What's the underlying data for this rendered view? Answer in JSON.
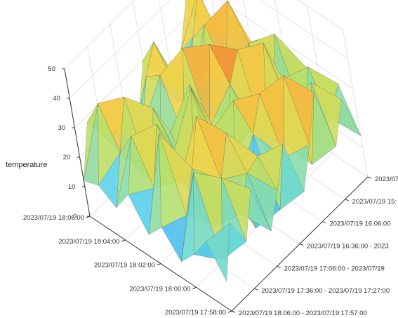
{
  "chart_data": {
    "type": "surface3d",
    "zlabel": "temperature",
    "zlim": [
      0,
      50
    ],
    "z_ticks": [
      "0",
      "10",
      "20",
      "30",
      "40",
      "50"
    ],
    "y_ticks": [
      "2023/07/19 18:06:00",
      "2023/07/19 18:04:00",
      "2023/07/19 18:02:00",
      "2023/07/19 18:00:00",
      "2023/07/19 17:58:00"
    ],
    "x_ticks": [
      "2023/07/19 18:06:00 - 2023/07/19 17:57:00",
      "2023/07/19 17:36:00 - 2023/07/19 17:27:00",
      "2023/07/19 17:06:00 - 2023/07/19",
      "2023/07/19 16:36:00 - 2023",
      "2023/07/19 16:06:00",
      "2023/07/19 15:",
      "2023/07/1"
    ],
    "grid": true,
    "colormap": [
      "#7b3ce0",
      "#3fa9f5",
      "#5ed6e8",
      "#b9e06a",
      "#f2d34a",
      "#f29a3a",
      "#d9541e"
    ],
    "z": [
      [
        12,
        28,
        20,
        10,
        8,
        15,
        30,
        18,
        9,
        22,
        35,
        14,
        10
      ],
      [
        14,
        38,
        24,
        13,
        18,
        32,
        40,
        26,
        12,
        30,
        42,
        20,
        16
      ],
      [
        10,
        25,
        40,
        22,
        12,
        36,
        28,
        15,
        20,
        38,
        30,
        10,
        24
      ],
      [
        18,
        34,
        15,
        36,
        24,
        18,
        45,
        30,
        14,
        26,
        46,
        28,
        12
      ],
      [
        8,
        20,
        38,
        25,
        10,
        40,
        22,
        46,
        30,
        16,
        35,
        22,
        30
      ],
      [
        14,
        42,
        22,
        12,
        46,
        28,
        16,
        36,
        44,
        20,
        12,
        38,
        18
      ],
      [
        6,
        18,
        30,
        44,
        20,
        10,
        38,
        24,
        14,
        46,
        30,
        16,
        26
      ],
      [
        12,
        36,
        14,
        26,
        38,
        2,
        30,
        40,
        20,
        28,
        10,
        34,
        12
      ],
      [
        20,
        10,
        34,
        18,
        28,
        30,
        8,
        22,
        46,
        12,
        36,
        20,
        28
      ],
      [
        10,
        26,
        16,
        30,
        12,
        22,
        34,
        14,
        26,
        40,
        18,
        30,
        14
      ]
    ]
  }
}
